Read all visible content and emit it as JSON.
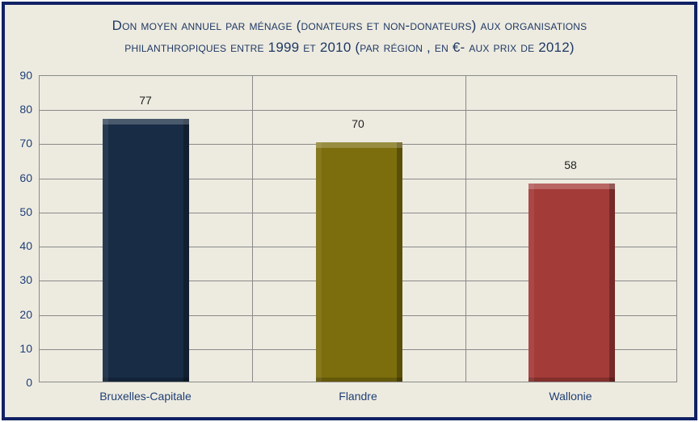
{
  "style": {
    "background": "#EDEBE0",
    "frame_border": "#102263",
    "title_color": "#1F3864",
    "axis_label_color": "#1F3E75",
    "grid_color": "#898989",
    "value_label_color": "#1F1F1F"
  },
  "chart_data": {
    "type": "bar",
    "title": "Don moyen annuel par ménage (donateurs et non-donateurs) aux organisations philanthropiques entre 1999 et 2010 (par région , en €- aux prix de 2012)",
    "title_lines": [
      "Don moyen annuel par ménage (donateurs et non-donateurs) aux organisations",
      "philanthropiques entre 1999 et 2010 (par région , en €- aux prix de 2012)"
    ],
    "categories": [
      "Bruxelles-Capitale",
      "Flandre",
      "Wallonie"
    ],
    "values": [
      77,
      70,
      58
    ],
    "bar_colors": [
      "#182C45",
      "#7D6E0D",
      "#A33B38"
    ],
    "value_labels": [
      "77",
      "70",
      "58"
    ],
    "xlabel": "",
    "ylabel": "",
    "ylim": [
      0,
      90
    ],
    "yticks": [
      0,
      10,
      20,
      30,
      40,
      50,
      60,
      70,
      80,
      90
    ],
    "grid": true,
    "vertical_column_dividers": true,
    "legend": null
  }
}
